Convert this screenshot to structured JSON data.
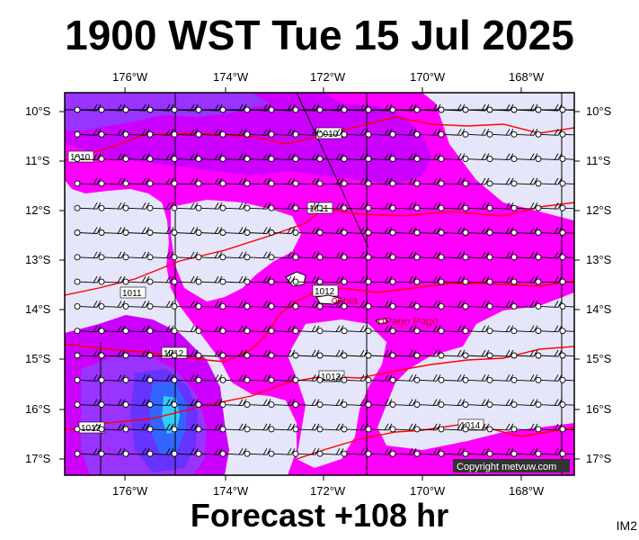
{
  "title": "1900 WST Tue 15 Jul 2025",
  "subtitle": "Forecast +108 hr",
  "product_code": "IM2",
  "copyright": "Copyright metvuw.com",
  "map": {
    "lon_range": [
      -177.2,
      -166.8
    ],
    "lat_range": [
      -17.3,
      -9.8
    ],
    "lon_ticks": [
      "176°W",
      "174°W",
      "172°W",
      "170°W",
      "168°W"
    ],
    "lat_ticks": [
      "10°S",
      "11°S",
      "12°S",
      "13°S",
      "14°S",
      "15°S",
      "16°S",
      "17°S"
    ],
    "background_color": "#e6e6fa",
    "rain_colors": [
      "#ff00ff",
      "#cc00ff",
      "#9933ff",
      "#6633ff",
      "#3366ff",
      "#33ccff"
    ],
    "isobar_color": "#ff0000",
    "isobar_labels": [
      "1010",
      "1010",
      "1011",
      "1011",
      "1012",
      "1012",
      "1013",
      "1013",
      "1014"
    ],
    "places": [
      "Apia",
      "Pago Pago"
    ],
    "legend_colors": {
      "outline": "#000000",
      "wind": "#000000"
    }
  }
}
